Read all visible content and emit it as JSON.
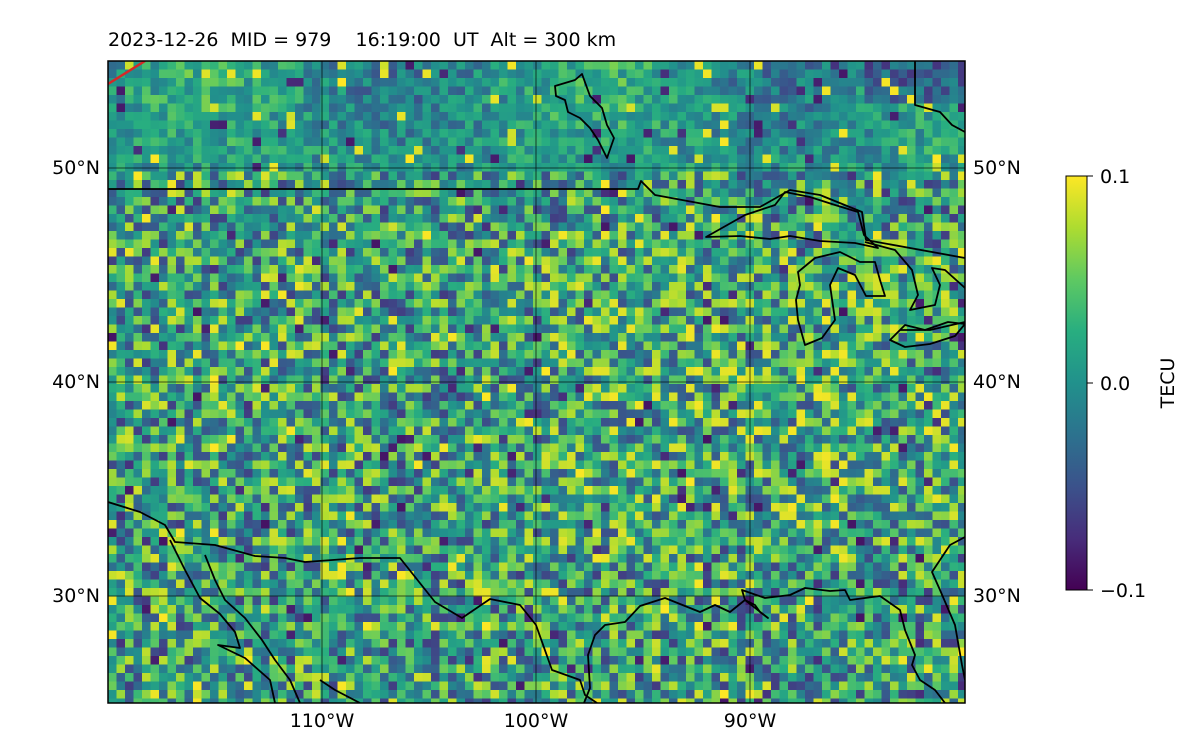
{
  "title": "2023-12-26  MID = 979    16:19:00  UT  Alt = 300 km",
  "map": {
    "lon_range": [
      -120,
      -80
    ],
    "lat_range": [
      25,
      55
    ],
    "grid": true,
    "lat_labels": [
      "50°N",
      "40°N",
      "30°N"
    ],
    "lon_labels": [
      "110°W",
      "100°W",
      "90°W"
    ],
    "coastline_color": "#000000",
    "terminator_color": "#d62728"
  },
  "colorbar": {
    "label": "TECU",
    "colormap": "viridis",
    "ticks": [
      "0.1",
      "0.0",
      "−0.1"
    ],
    "range": [
      -0.1,
      0.1
    ],
    "position": "right"
  }
}
